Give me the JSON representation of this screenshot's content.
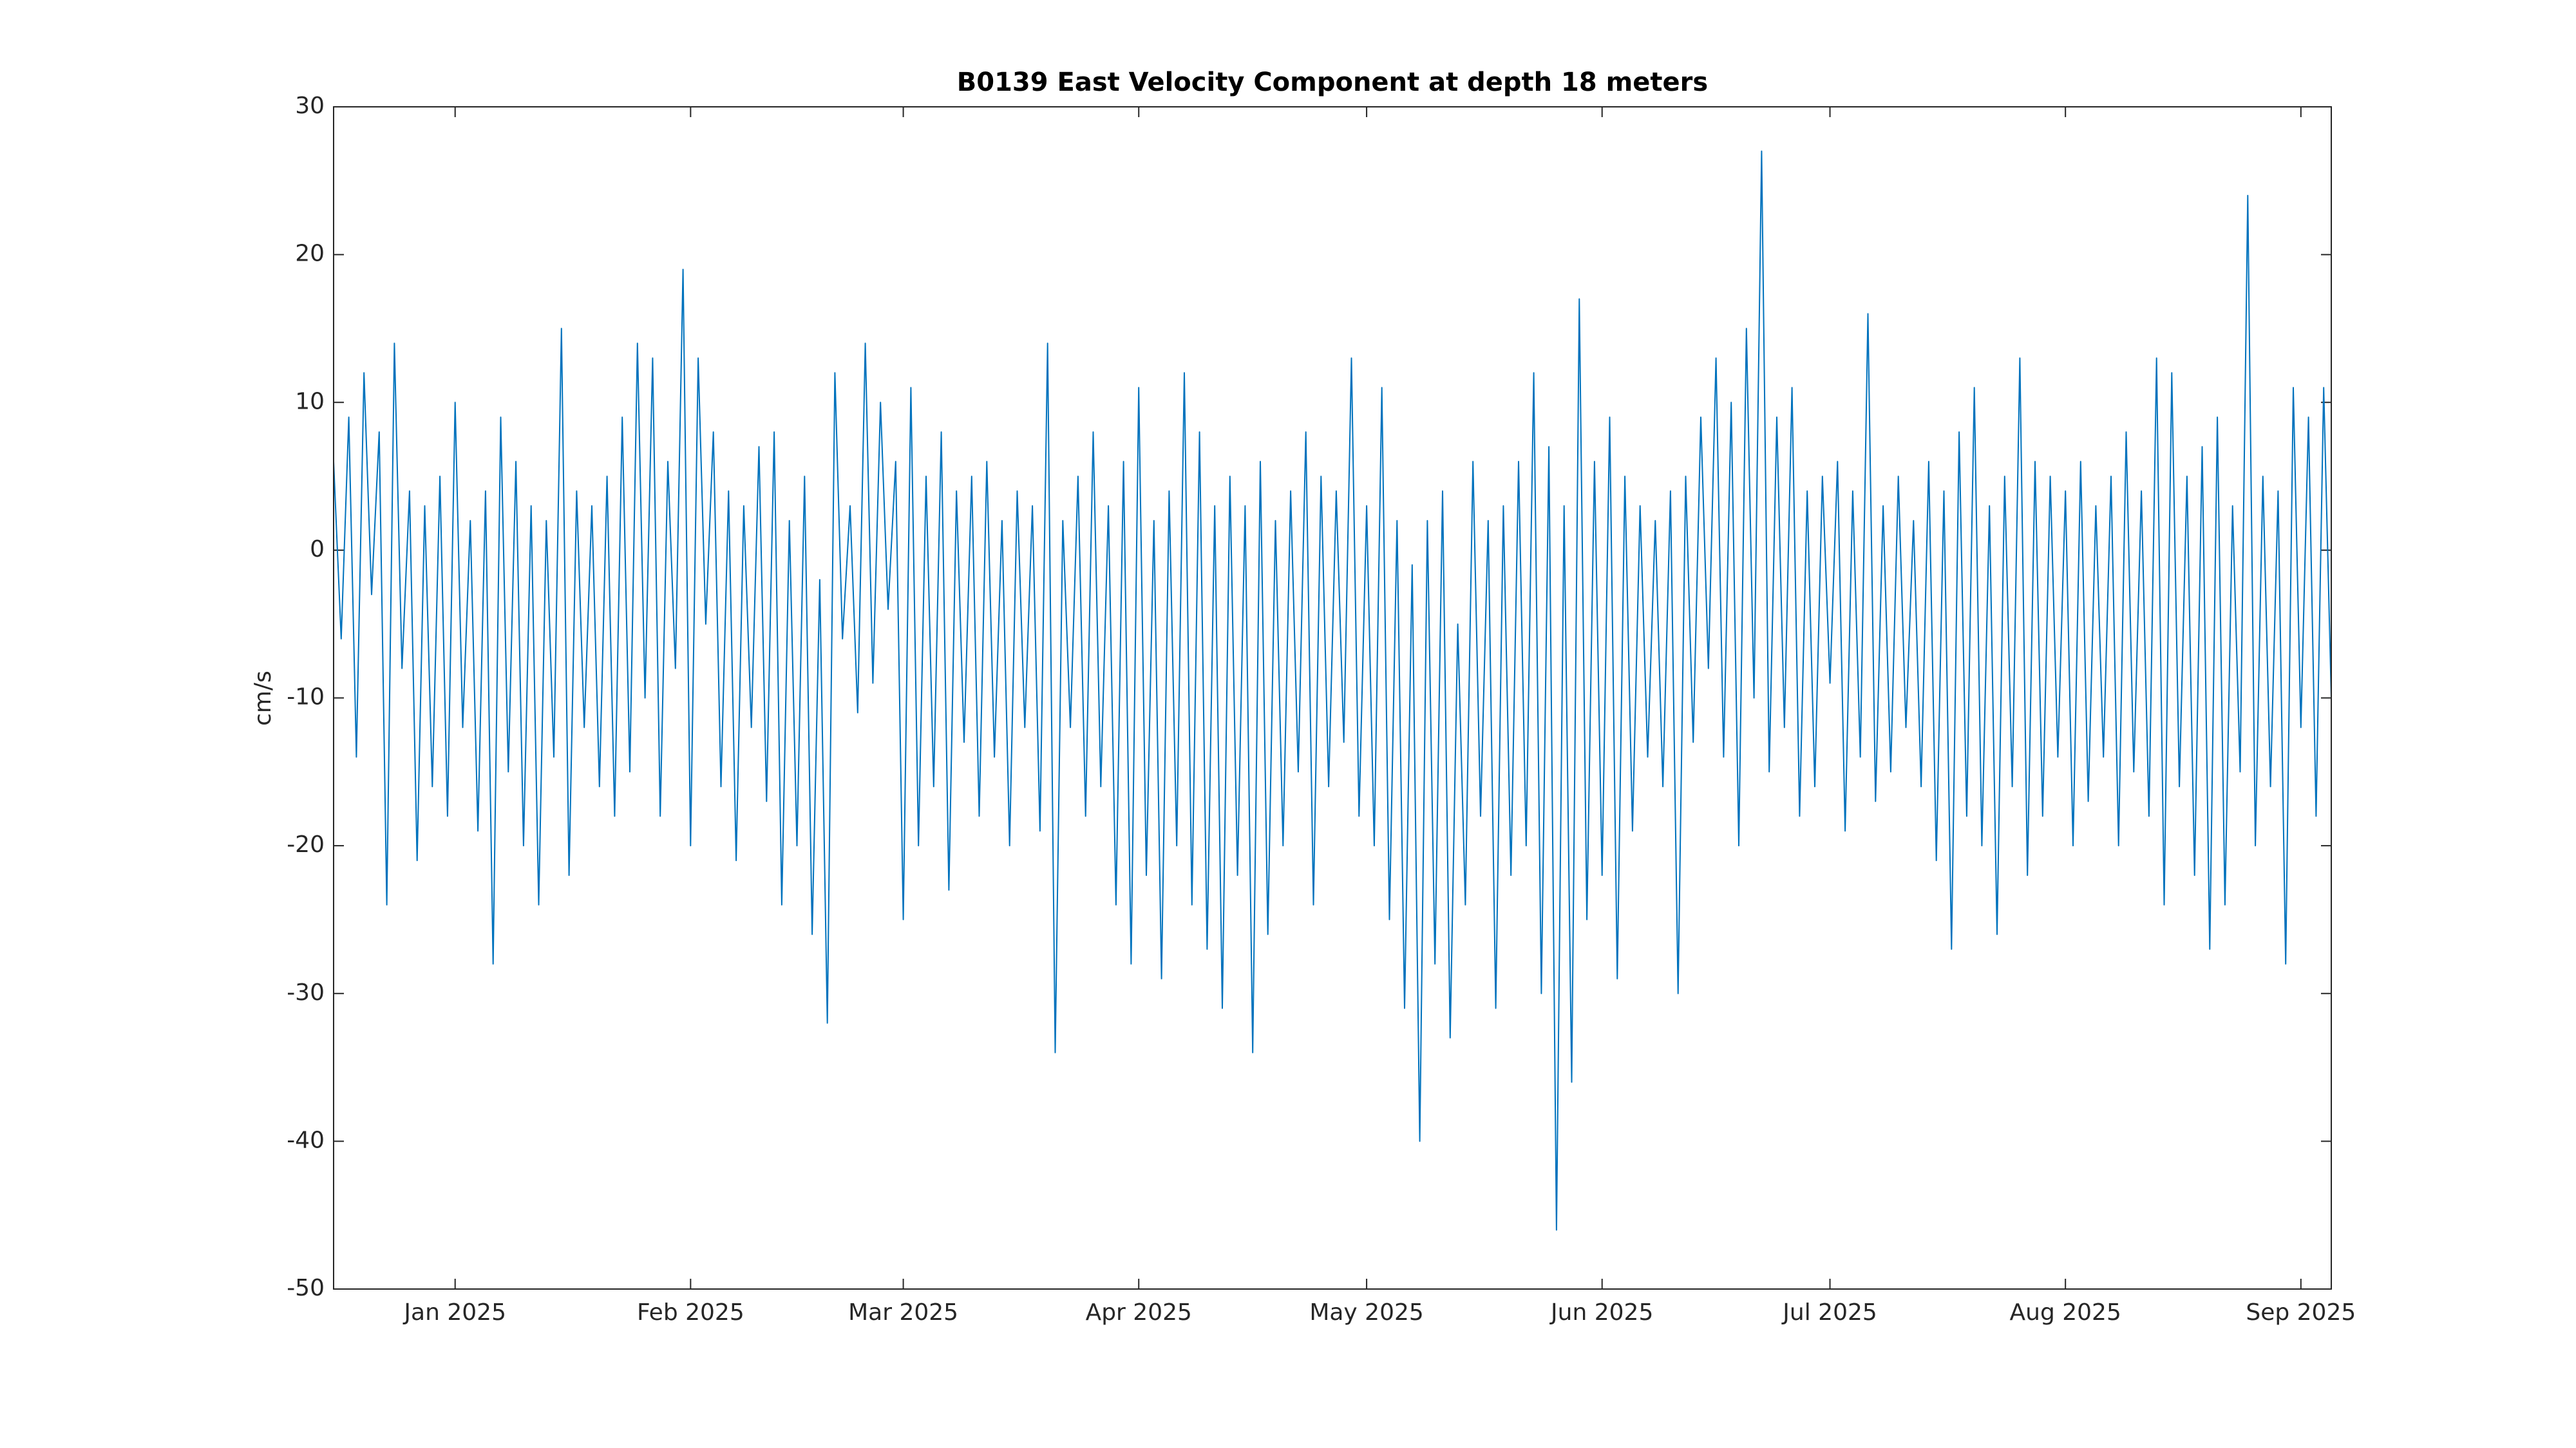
{
  "chart_data": {
    "type": "line",
    "title": "B0139 East Velocity Component at depth 18 meters",
    "y_label": "cm/s",
    "color": "#0072bd",
    "grid": false,
    "xlim": [
      -16,
      247
    ],
    "xticks": [
      {
        "value": 0,
        "label": "Jan 2025"
      },
      {
        "value": 31,
        "label": "Feb 2025"
      },
      {
        "value": 59,
        "label": "Mar 2025"
      },
      {
        "value": 90,
        "label": "Apr 2025"
      },
      {
        "value": 120,
        "label": "May 2025"
      },
      {
        "value": 151,
        "label": "Jun 2025"
      },
      {
        "value": 181,
        "label": "Jul 2025"
      },
      {
        "value": 212,
        "label": "Aug 2025"
      },
      {
        "value": 243,
        "label": "Sep 2025"
      }
    ],
    "ylim": [
      -50,
      30
    ],
    "yticks": [
      -50,
      -40,
      -30,
      -20,
      -10,
      0,
      10,
      20,
      30
    ],
    "x": [
      -16,
      -15,
      -14,
      -13,
      -12,
      -11,
      -10,
      -9,
      -8,
      -7,
      -6,
      -5,
      -4,
      -3,
      -2,
      -1,
      0,
      1,
      2,
      3,
      4,
      5,
      6,
      7,
      8,
      9,
      10,
      11,
      12,
      13,
      14,
      15,
      16,
      17,
      18,
      19,
      20,
      21,
      22,
      23,
      24,
      25,
      26,
      27,
      28,
      29,
      30,
      31,
      32,
      33,
      34,
      35,
      36,
      37,
      38,
      39,
      40,
      41,
      42,
      43,
      44,
      45,
      46,
      47,
      48,
      49,
      50,
      51,
      52,
      53,
      54,
      55,
      56,
      57,
      58,
      59,
      60,
      61,
      62,
      63,
      64,
      65,
      66,
      67,
      68,
      69,
      70,
      71,
      72,
      73,
      74,
      75,
      76,
      77,
      78,
      79,
      80,
      81,
      82,
      83,
      84,
      85,
      86,
      87,
      88,
      89,
      90,
      91,
      92,
      93,
      94,
      95,
      96,
      97,
      98,
      99,
      100,
      101,
      102,
      103,
      104,
      105,
      106,
      107,
      108,
      109,
      110,
      111,
      112,
      113,
      114,
      115,
      116,
      117,
      118,
      119,
      120,
      121,
      122,
      123,
      124,
      125,
      126,
      127,
      128,
      129,
      130,
      131,
      132,
      133,
      134,
      135,
      136,
      137,
      138,
      139,
      140,
      141,
      142,
      143,
      144,
      145,
      146,
      147,
      148,
      149,
      150,
      151,
      152,
      153,
      154,
      155,
      156,
      157,
      158,
      159,
      160,
      161,
      162,
      163,
      164,
      165,
      166,
      167,
      168,
      169,
      170,
      171,
      172,
      173,
      174,
      175,
      176,
      177,
      178,
      179,
      180,
      181,
      182,
      183,
      184,
      185,
      186,
      187,
      188,
      189,
      190,
      191,
      192,
      193,
      194,
      195,
      196,
      197,
      198,
      199,
      200,
      201,
      202,
      203,
      204,
      205,
      206,
      207,
      208,
      209,
      210,
      211,
      212,
      213,
      214,
      215,
      216,
      217,
      218,
      219,
      220,
      221,
      222,
      223,
      224,
      225,
      226,
      227,
      228,
      229,
      230,
      231,
      232,
      233,
      234,
      235,
      236,
      237,
      238,
      239,
      240,
      241,
      242,
      243,
      244,
      245,
      246,
      247
    ],
    "values": [
      6,
      -6,
      9,
      -14,
      12,
      -3,
      8,
      -24,
      14,
      -8,
      4,
      -21,
      3,
      -16,
      5,
      -18,
      10,
      -12,
      2,
      -19,
      4,
      -28,
      9,
      -15,
      6,
      -20,
      3,
      -24,
      2,
      -14,
      15,
      -22,
      4,
      -12,
      3,
      -16,
      5,
      -18,
      9,
      -15,
      14,
      -10,
      13,
      -18,
      6,
      -8,
      19,
      -20,
      13,
      -5,
      8,
      -16,
      4,
      -21,
      3,
      -12,
      7,
      -17,
      8,
      -24,
      2,
      -20,
      5,
      -26,
      -2,
      -32,
      12,
      -6,
      3,
      -11,
      14,
      -9,
      10,
      -4,
      6,
      -25,
      11,
      -20,
      5,
      -16,
      8,
      -23,
      4,
      -13,
      5,
      -18,
      6,
      -14,
      2,
      -20,
      4,
      -12,
      3,
      -19,
      14,
      -34,
      2,
      -12,
      5,
      -18,
      8,
      -16,
      3,
      -24,
      6,
      -28,
      11,
      -22,
      2,
      -29,
      4,
      -20,
      12,
      -24,
      8,
      -27,
      3,
      -31,
      5,
      -22,
      3,
      -34,
      6,
      -26,
      2,
      -20,
      4,
      -15,
      8,
      -24,
      5,
      -16,
      4,
      -13,
      13,
      -18,
      3,
      -20,
      11,
      -25,
      2,
      -31,
      -1,
      -40,
      2,
      -28,
      4,
      -33,
      -5,
      -24,
      6,
      -18,
      2,
      -31,
      3,
      -22,
      6,
      -20,
      12,
      -30,
      7,
      -46,
      3,
      -36,
      17,
      -25,
      6,
      -22,
      9,
      -29,
      5,
      -19,
      3,
      -14,
      2,
      -16,
      4,
      -30,
      5,
      -13,
      9,
      -8,
      13,
      -14,
      10,
      -20,
      15,
      -10,
      27,
      -15,
      9,
      -12,
      11,
      -18,
      4,
      -16,
      5,
      -9,
      6,
      -19,
      4,
      -14,
      16,
      -17,
      3,
      -15,
      5,
      -12,
      2,
      -16,
      6,
      -21,
      4,
      -27,
      8,
      -18,
      11,
      -20,
      3,
      -26,
      5,
      -16,
      13,
      -22,
      6,
      -18,
      5,
      -14,
      4,
      -20,
      6,
      -17,
      3,
      -14,
      5,
      -20,
      8,
      -15,
      4,
      -18,
      13,
      -24,
      12,
      -16,
      5,
      -22,
      7,
      -27,
      9,
      -24,
      3,
      -15,
      24,
      -20,
      5,
      -16,
      4,
      -28,
      11,
      -12,
      9,
      -18,
      11,
      -10
    ]
  }
}
